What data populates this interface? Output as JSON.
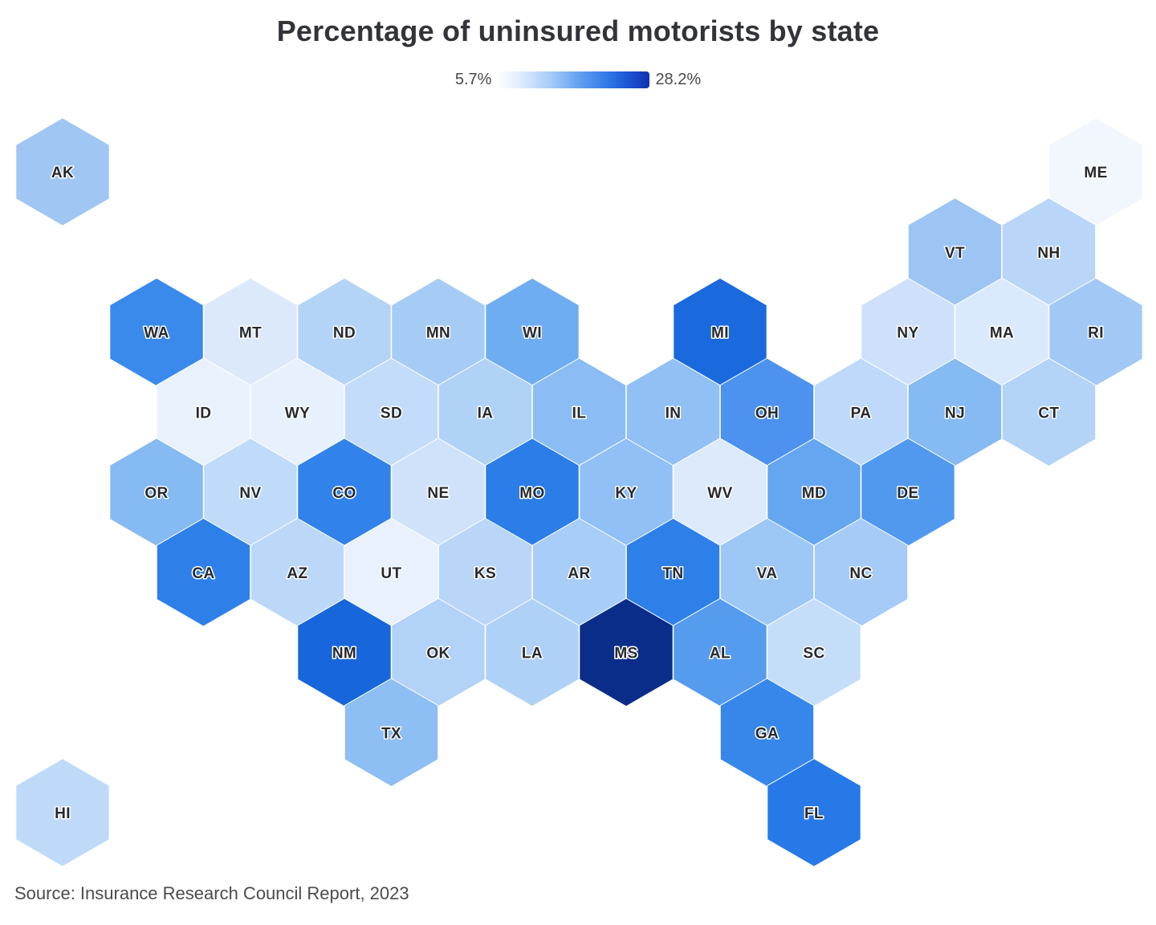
{
  "title": "Percentage of uninsured motorists by state",
  "legend": {
    "min_label": "5.7%",
    "max_label": "28.2%",
    "position": "top-center",
    "gradient_colors": [
      "#ffffff",
      "#a9cef7",
      "#2f74e6",
      "#1132ae"
    ]
  },
  "source": "Source: Insurance Research Council Report, 2023",
  "chart_data": {
    "type": "heatmap",
    "variant": "us-hex-tile-map",
    "title": "Percentage of uninsured motorists by state",
    "value_unit": "%",
    "color_scale": {
      "min_value": 5.7,
      "max_value": 28.2,
      "min_label": "5.7%",
      "max_label": "28.2%",
      "min_color": "#ffffff",
      "max_color": "#0b2d8a"
    },
    "legend_position": "top-center",
    "grid": {
      "rows": 9,
      "cols": 12,
      "odd_rows_offset": true
    },
    "states": [
      {
        "abbr": "AK",
        "row": 0,
        "col": 0,
        "color": "#a0c6f4",
        "value_estimate": 11.9
      },
      {
        "abbr": "ME",
        "row": 0,
        "col": 11,
        "color": "#f2f6fd",
        "value_estimate": 5.7
      },
      {
        "abbr": "VT",
        "row": 1,
        "col": 9,
        "color": "#9cc5f4",
        "value_estimate": 12.2
      },
      {
        "abbr": "NH",
        "row": 1,
        "col": 10,
        "color": "#b9d6f8",
        "value_estimate": 10.1
      },
      {
        "abbr": "WA",
        "row": 2,
        "col": 1,
        "color": "#3a8aec",
        "value_estimate": 19.4
      },
      {
        "abbr": "MT",
        "row": 2,
        "col": 2,
        "color": "#dce9fb",
        "value_estimate": 7.9
      },
      {
        "abbr": "ND",
        "row": 2,
        "col": 3,
        "color": "#b4d4f7",
        "value_estimate": 10.4
      },
      {
        "abbr": "MN",
        "row": 2,
        "col": 4,
        "color": "#a6ccf6",
        "value_estimate": 11.4
      },
      {
        "abbr": "WI",
        "row": 2,
        "col": 5,
        "color": "#6fadf2",
        "value_estimate": 15.3
      },
      {
        "abbr": "MI",
        "row": 2,
        "col": 7,
        "color": "#1a6ade",
        "value_estimate": 23.4
      },
      {
        "abbr": "NY",
        "row": 2,
        "col": 9,
        "color": "#cfe1fa",
        "value_estimate": 8.7
      },
      {
        "abbr": "MA",
        "row": 2,
        "col": 10,
        "color": "#dbe9fc",
        "value_estimate": 8.1
      },
      {
        "abbr": "RI",
        "row": 2,
        "col": 11,
        "color": "#a2c9f5",
        "value_estimate": 11.8
      },
      {
        "abbr": "ID",
        "row": 3,
        "col": 1,
        "color": "#e9f1fd",
        "value_estimate": 7.1
      },
      {
        "abbr": "WY",
        "row": 3,
        "col": 2,
        "color": "#e7f0fd",
        "value_estimate": 7.0
      },
      {
        "abbr": "SD",
        "row": 3,
        "col": 3,
        "color": "#c3dcf9",
        "value_estimate": 9.3
      },
      {
        "abbr": "IA",
        "row": 3,
        "col": 4,
        "color": "#b0d2f7",
        "value_estimate": 10.7
      },
      {
        "abbr": "IL",
        "row": 3,
        "col": 5,
        "color": "#8bbdf4",
        "value_estimate": 13.3
      },
      {
        "abbr": "IN",
        "row": 3,
        "col": 6,
        "color": "#90c0f4",
        "value_estimate": 13.0
      },
      {
        "abbr": "OH",
        "row": 3,
        "col": 7,
        "color": "#4c92ee",
        "value_estimate": 17.9
      },
      {
        "abbr": "PA",
        "row": 3,
        "col": 8,
        "color": "#bed9f9",
        "value_estimate": 9.8
      },
      {
        "abbr": "NJ",
        "row": 3,
        "col": 9,
        "color": "#85baf3",
        "value_estimate": 13.7
      },
      {
        "abbr": "CT",
        "row": 3,
        "col": 10,
        "color": "#b3d3f7",
        "value_estimate": 10.4
      },
      {
        "abbr": "OR",
        "row": 4,
        "col": 1,
        "color": "#85baf3",
        "value_estimate": 13.7
      },
      {
        "abbr": "NV",
        "row": 4,
        "col": 2,
        "color": "#c0daf9",
        "value_estimate": 9.6
      },
      {
        "abbr": "CO",
        "row": 4,
        "col": 3,
        "color": "#3182ea",
        "value_estimate": 20.1
      },
      {
        "abbr": "NE",
        "row": 4,
        "col": 4,
        "color": "#cfe2fa",
        "value_estimate": 8.6
      },
      {
        "abbr": "MO",
        "row": 4,
        "col": 5,
        "color": "#2b7de8",
        "value_estimate": 20.6
      },
      {
        "abbr": "KY",
        "row": 4,
        "col": 6,
        "color": "#90c0f5",
        "value_estimate": 12.9
      },
      {
        "abbr": "WV",
        "row": 4,
        "col": 7,
        "color": "#dceafc",
        "value_estimate": 8.0
      },
      {
        "abbr": "MD",
        "row": 4,
        "col": 8,
        "color": "#65a6f0",
        "value_estimate": 16.1
      },
      {
        "abbr": "DE",
        "row": 4,
        "col": 9,
        "color": "#5099ef",
        "value_estimate": 17.5
      },
      {
        "abbr": "CA",
        "row": 5,
        "col": 1,
        "color": "#2e80e9",
        "value_estimate": 20.3
      },
      {
        "abbr": "AZ",
        "row": 5,
        "col": 2,
        "color": "#bcd8f9",
        "value_estimate": 9.8
      },
      {
        "abbr": "UT",
        "row": 5,
        "col": 3,
        "color": "#e8f1fd",
        "value_estimate": 7.2
      },
      {
        "abbr": "KS",
        "row": 5,
        "col": 4,
        "color": "#b9d6f8",
        "value_estimate": 10.0
      },
      {
        "abbr": "AR",
        "row": 5,
        "col": 5,
        "color": "#a8cdf6",
        "value_estimate": 11.2
      },
      {
        "abbr": "TN",
        "row": 5,
        "col": 6,
        "color": "#2e80e9",
        "value_estimate": 20.3
      },
      {
        "abbr": "VA",
        "row": 5,
        "col": 7,
        "color": "#9dc7f5",
        "value_estimate": 12.1
      },
      {
        "abbr": "NC",
        "row": 5,
        "col": 8,
        "color": "#a5cbf6",
        "value_estimate": 11.5
      },
      {
        "abbr": "NM",
        "row": 6,
        "col": 3,
        "color": "#1766dc",
        "value_estimate": 23.9
      },
      {
        "abbr": "OK",
        "row": 6,
        "col": 4,
        "color": "#b2d2f7",
        "value_estimate": 10.5
      },
      {
        "abbr": "LA",
        "row": 6,
        "col": 5,
        "color": "#b0d1f7",
        "value_estimate": 10.7
      },
      {
        "abbr": "MS",
        "row": 6,
        "col": 6,
        "color": "#0b2d8a",
        "value_estimate": 28.2
      },
      {
        "abbr": "AL",
        "row": 6,
        "col": 7,
        "color": "#559cef",
        "value_estimate": 17.3
      },
      {
        "abbr": "SC",
        "row": 6,
        "col": 8,
        "color": "#c4ddf9",
        "value_estimate": 9.3
      },
      {
        "abbr": "TX",
        "row": 7,
        "col": 3,
        "color": "#8dbef4",
        "value_estimate": 13.2
      },
      {
        "abbr": "GA",
        "row": 7,
        "col": 7,
        "color": "#3787eb",
        "value_estimate": 19.6
      },
      {
        "abbr": "HI",
        "row": 8,
        "col": 0,
        "color": "#bfdaf9",
        "value_estimate": 9.6
      },
      {
        "abbr": "FL",
        "row": 8,
        "col": 8,
        "color": "#2679e7",
        "value_estimate": 21.2
      }
    ],
    "source": "Source: Insurance Research Council Report, 2023"
  }
}
